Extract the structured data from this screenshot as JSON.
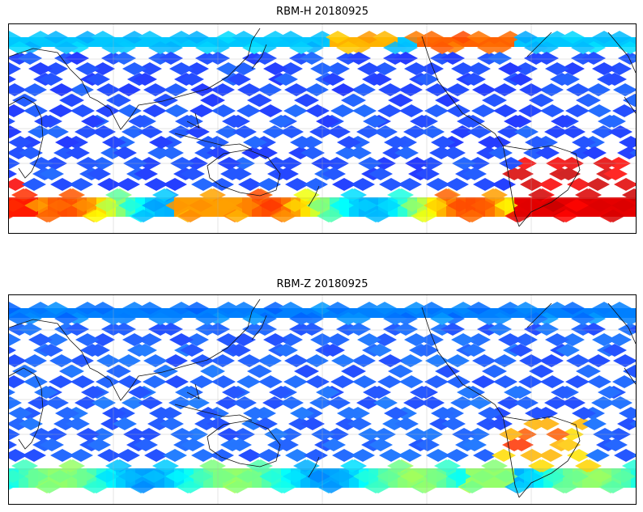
{
  "panels": [
    {
      "title": "RBM-H 20180925"
    },
    {
      "title": "RBM-Z 20180925"
    }
  ]
}
